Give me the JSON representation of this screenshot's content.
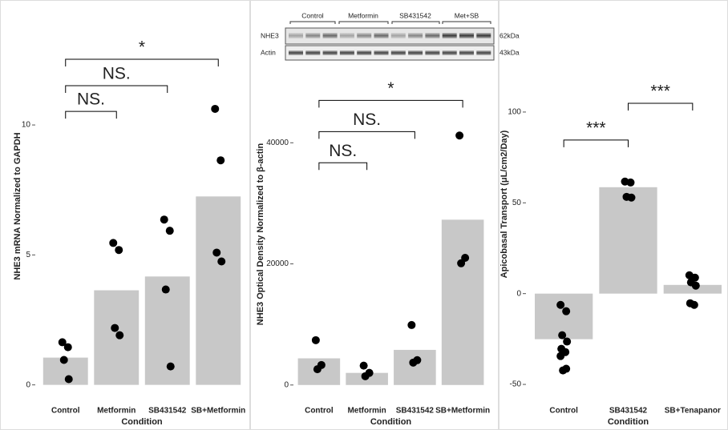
{
  "blot": {
    "lanes": [
      "Control",
      "Metformin",
      "SB431542",
      "Met+SB"
    ],
    "rows": [
      {
        "label": "NHE3",
        "size": "62kDa"
      },
      {
        "label": "Actin",
        "size": "43kDa"
      }
    ]
  },
  "chart_data": [
    {
      "type": "bar",
      "xlabel": "Condition",
      "ylabel": "NHE3 mRNA Normalized to GAPDH",
      "categories": [
        "Control",
        "Metformin",
        "SB431542",
        "SB+Metformin"
      ],
      "values": [
        1.05,
        3.64,
        4.17,
        7.25
      ],
      "points": [
        [
          1.64,
          1.45,
          0.96,
          0.22
        ],
        [
          5.46,
          5.19,
          2.19,
          1.91
        ],
        [
          6.36,
          5.93,
          3.67,
          0.71
        ],
        [
          10.62,
          8.64,
          5.09,
          4.75
        ]
      ],
      "color": "#c8c8c8",
      "point_color": "#000000",
      "ylim": [
        -0.75,
        14.5
      ],
      "yticks": [
        0,
        5,
        10
      ],
      "comparisons": [
        {
          "label": "*",
          "between": [
            "Control",
            "SB+Metformin"
          ],
          "y": 12.53
        },
        {
          "label": "NS.",
          "between": [
            "Control",
            "SB431542"
          ],
          "y": 11.51
        },
        {
          "label": "NS.",
          "between": [
            "Control",
            "Metformin"
          ],
          "y": 10.52
        }
      ]
    },
    {
      "type": "bar",
      "xlabel": "Condition",
      "ylabel": "NHE3 Optical Density Normalized to β-actin",
      "categories": [
        "Control",
        "Metformin",
        "SB431542",
        "SB+Metformin"
      ],
      "values": [
        4400,
        2000,
        5800,
        27300
      ],
      "points": [
        [
          7400,
          3300,
          2600
        ],
        [
          3200,
          2000,
          1450
        ],
        [
          9900,
          4100,
          3700
        ],
        [
          41200,
          21000,
          20100
        ]
      ],
      "color": "#c8c8c8",
      "point_color": "#000000",
      "ylim": [
        -3200,
        53000
      ],
      "yticks": [
        0,
        20000,
        40000
      ],
      "comparisons": [
        {
          "label": "*",
          "between": [
            "Control",
            "SB+Metformin"
          ],
          "y": 47000
        },
        {
          "label": "NS.",
          "between": [
            "Control",
            "SB431542"
          ],
          "y": 41850
        },
        {
          "label": "NS.",
          "between": [
            "Control",
            "Metformin"
          ],
          "y": 36700
        }
      ]
    },
    {
      "type": "bar",
      "xlabel": "Condition",
      "ylabel": "Apicobasal Transport (μL/cm2/Day)",
      "categories": [
        "Control",
        "SB431542",
        "SB+Tenapanor"
      ],
      "values": [
        -25.1,
        58.6,
        4.8
      ],
      "points": [
        [
          -6.2,
          -9.7,
          -22.9,
          -26.4,
          -30.4,
          -32.2,
          -34.4,
          -41.4,
          -42.3
        ],
        [
          61.7,
          61.2,
          53.3,
          52.9
        ],
        [
          10.1,
          8.8,
          6.2,
          4.4,
          -5.3,
          -6.2
        ]
      ],
      "color": "#c8c8c8",
      "point_color": "#000000",
      "ylim": [
        -61,
        159.5
      ],
      "yticks": [
        -50,
        0,
        50,
        100
      ],
      "comparisons": [
        {
          "label": "***",
          "between": [
            "Control",
            "SB431542"
          ],
          "y": 84.6
        },
        {
          "label": "***",
          "between": [
            "SB431542",
            "SB+Tenapanor"
          ],
          "y": 104.8
        }
      ]
    }
  ]
}
